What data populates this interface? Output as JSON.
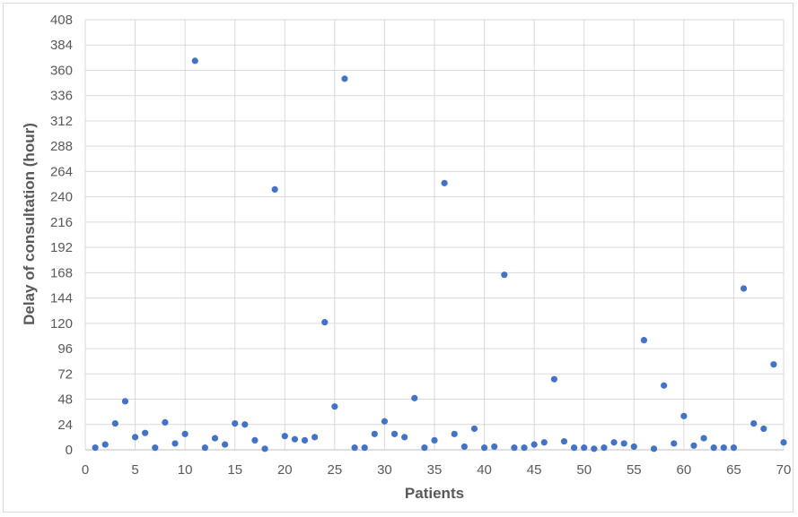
{
  "chart_data": {
    "type": "scatter",
    "title": "",
    "xlabel": "Patients",
    "ylabel": "Delay of consultation (hour)",
    "xlim": [
      0,
      70
    ],
    "ylim": [
      0,
      408
    ],
    "x_ticks": [
      0,
      5,
      10,
      15,
      20,
      25,
      30,
      35,
      40,
      45,
      50,
      55,
      60,
      65,
      70
    ],
    "y_ticks": [
      0,
      24,
      48,
      72,
      96,
      120,
      144,
      168,
      192,
      216,
      240,
      264,
      288,
      312,
      336,
      360,
      384,
      408
    ],
    "grid": true,
    "legend": "none",
    "marker_color": "#4472c4",
    "series": [
      {
        "x": [
          1,
          2,
          3,
          4,
          5,
          6,
          7,
          8,
          9,
          10,
          11,
          12,
          13,
          14,
          15,
          16,
          17,
          18,
          19,
          20,
          21,
          22,
          23,
          24,
          25,
          26,
          27,
          28,
          29,
          30,
          31,
          32,
          33,
          34,
          35,
          36,
          37,
          38,
          39,
          40,
          41,
          42,
          43,
          44,
          45,
          46,
          47,
          48,
          49,
          50,
          51,
          52,
          53,
          54,
          55,
          56,
          57,
          58,
          59,
          60,
          61,
          62,
          63,
          64,
          65,
          66,
          67,
          68,
          69,
          70
        ],
        "y": [
          2,
          5,
          25,
          46,
          12,
          16,
          2,
          26,
          6,
          15,
          369,
          2,
          11,
          5,
          25,
          24,
          9,
          1,
          247,
          13,
          10,
          9,
          12,
          121,
          41,
          352,
          2,
          2,
          15,
          27,
          15,
          12,
          49,
          2,
          9,
          253,
          15,
          3,
          20,
          2,
          3,
          166,
          2,
          2,
          5,
          7,
          67,
          8,
          2,
          2,
          1,
          2,
          7,
          6,
          3,
          104,
          1,
          61,
          6,
          32,
          4,
          11,
          2,
          2,
          2,
          153,
          25,
          20,
          81,
          7
        ]
      }
    ]
  }
}
